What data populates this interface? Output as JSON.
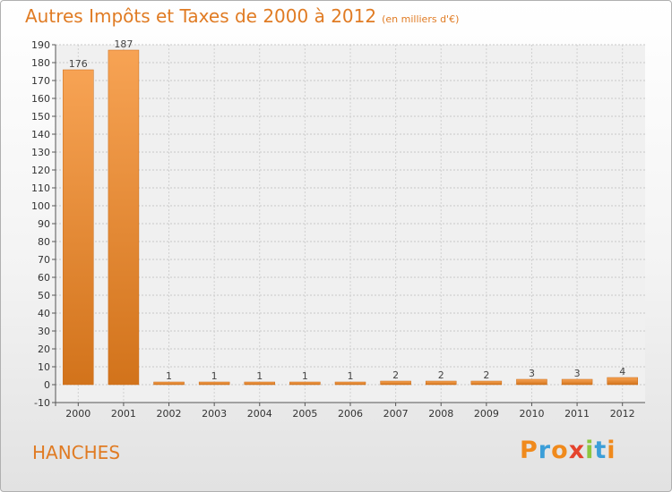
{
  "header": {
    "title": "Autres Impôts et Taxes de 2000 à 2012",
    "unit": "(en milliers d'€)"
  },
  "footer": {
    "commune": "HANCHES",
    "logo_letters": [
      "P",
      "r",
      "o",
      "x",
      "i",
      "t",
      "i"
    ]
  },
  "colors": {
    "title": "#e07b23",
    "bar_light": "#f7a354",
    "bar_dark": "#d2731b",
    "logo": [
      "#f08a1c",
      "#3b9ed8",
      "#f08a1c",
      "#e5432d",
      "#8cc63f",
      "#3b9ed8",
      "#f08a1c"
    ]
  },
  "chart_data": {
    "type": "bar",
    "categories": [
      "2000",
      "2001",
      "2002",
      "2003",
      "2004",
      "2005",
      "2006",
      "2007",
      "2008",
      "2009",
      "2010",
      "2011",
      "2012"
    ],
    "values": [
      176,
      187,
      1,
      1,
      1,
      1,
      1,
      2,
      2,
      2,
      3,
      3,
      4
    ],
    "ylim": [
      -10,
      190
    ],
    "yticks": [
      -10,
      0,
      10,
      20,
      30,
      40,
      50,
      60,
      70,
      80,
      90,
      100,
      110,
      120,
      130,
      140,
      150,
      160,
      170,
      180,
      190
    ],
    "grid": true,
    "data_labels": true
  }
}
